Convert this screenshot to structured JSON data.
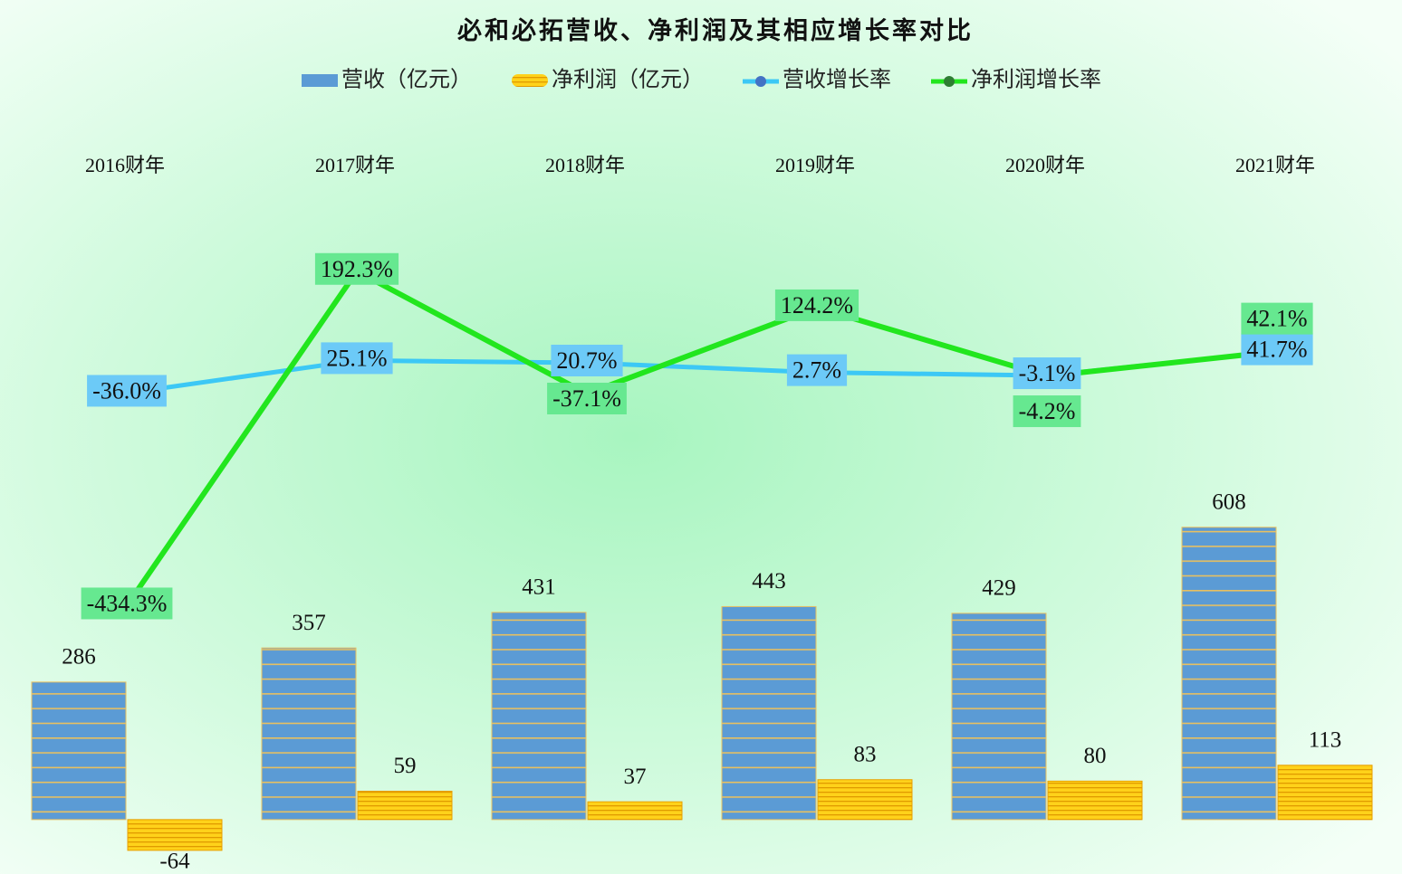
{
  "chart_data": {
    "type": "bar",
    "title": "必和必拓营收、净利润及其相应增长率对比",
    "categories": [
      "2016财年",
      "2017财年",
      "2018财年",
      "2019财年",
      "2020财年",
      "2021财年"
    ],
    "ylim": [
      -100,
      1300
    ],
    "y2lim": [
      -925,
      336
    ],
    "series": [
      {
        "name": "营收（亿元）",
        "type": "bar",
        "color": "#5b9bd5",
        "values": [
          286,
          357,
          431,
          443,
          429,
          608
        ]
      },
      {
        "name": "净利润（亿元）",
        "type": "bar",
        "color": "#ffc000",
        "values": [
          -64,
          59,
          37,
          83,
          80,
          113
        ]
      },
      {
        "name": "营收增长率",
        "type": "line",
        "axis": "y2",
        "color": "#3cc8f5",
        "label_color": "#6ccaf7",
        "values": [
          -36.0,
          25.1,
          20.7,
          2.7,
          -3.1,
          41.7
        ],
        "value_labels": [
          "-36.0%",
          "25.1%",
          "20.7%",
          "2.7%",
          "-3.1%",
          "41.7%"
        ]
      },
      {
        "name": "净利润增长率",
        "type": "line",
        "axis": "y2",
        "color": "#22e61e",
        "label_color": "#66e890",
        "values": [
          -434.3,
          192.3,
          -37.1,
          124.2,
          -4.2,
          42.1
        ],
        "value_labels": [
          "-434.3%",
          "192.3%",
          "-37.1%",
          "124.2%",
          "-4.2%",
          "42.1%"
        ]
      }
    ]
  }
}
